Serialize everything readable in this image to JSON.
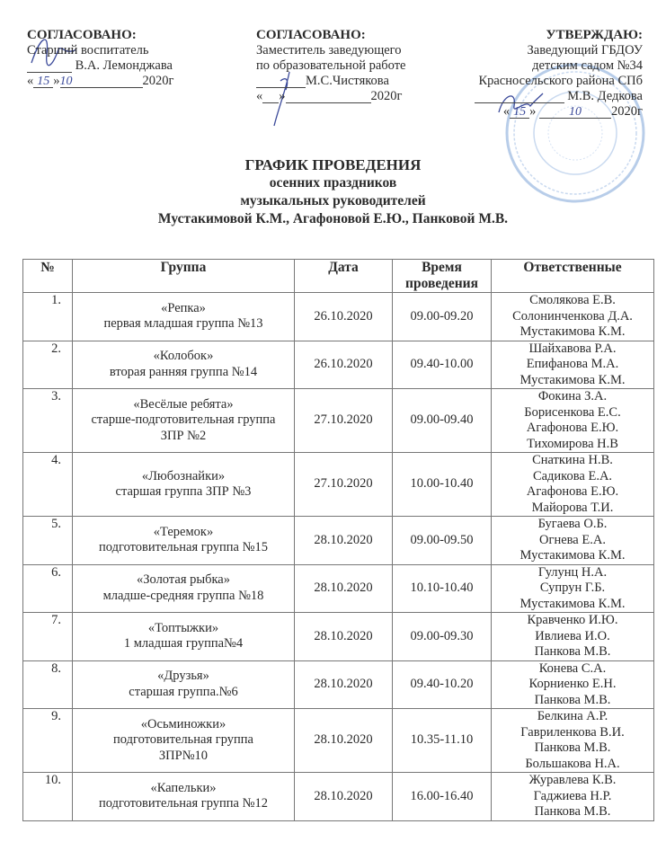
{
  "approvals": [
    {
      "heading": "СОГЛАСОВАНО:",
      "lines": [
        "Старший воспитатель"
      ],
      "name": "В.А. Лемонджава",
      "day": "15",
      "month": "10",
      "year": "2020г"
    },
    {
      "heading": "СОГЛАСОВАНО:",
      "lines": [
        "Заместитель заведующего",
        "по образовательной работе"
      ],
      "name": "М.С.Чистякова",
      "year": "2020г"
    },
    {
      "heading": "УТВЕРЖДАЮ:",
      "lines": [
        "Заведующий ГБДОУ",
        "детским садом №34",
        "Красносельского района СПб"
      ],
      "name": "М.В. Дедкова",
      "day": "15",
      "month": "10",
      "year": "2020г"
    }
  ],
  "title": {
    "line1": "ГРАФИК ПРОВЕДЕНИЯ",
    "line2": "осенних праздников",
    "line3": "музыкальных руководителей",
    "line4": "Мустакимовой К.М., Агафоновой Е.Ю., Панковой М.В."
  },
  "table": {
    "headers": [
      "№",
      "Группа",
      "Дата",
      "Время проведения",
      "Ответственные"
    ],
    "rows": [
      {
        "num": "1.",
        "group": [
          "«Репка»",
          "первая младшая группа №13"
        ],
        "date": "26.10.2020",
        "time": "09.00-09.20",
        "people": [
          "Смолякова Е.В.",
          "Солонинченкова Д.А.",
          "Мустакимова К.М."
        ]
      },
      {
        "num": "2.",
        "group": [
          "«Колобок»",
          "вторая ранняя группа №14"
        ],
        "date": "26.10.2020",
        "time": "09.40-10.00",
        "people": [
          "Шайхавова Р.А.",
          "Епифанова М.А.",
          "Мустакимова К.М."
        ]
      },
      {
        "num": "3.",
        "group": [
          "«Весёлые ребята»",
          "старше-подготовительная группа",
          "ЗПР №2"
        ],
        "date": "27.10.2020",
        "time": "09.00-09.40",
        "people": [
          "Фокина З.А.",
          "Борисенкова Е.С.",
          "Агафонова Е.Ю.",
          "Тихомирова Н.В"
        ]
      },
      {
        "num": "4.",
        "group": [
          "«Любознайки»",
          "старшая группа ЗПР №3"
        ],
        "date": "27.10.2020",
        "time": "10.00-10.40",
        "people": [
          "Снаткина Н.В.",
          "Садикова Е.А.",
          "Агафонова Е.Ю.",
          "Майорова Т.И."
        ]
      },
      {
        "num": "5.",
        "group": [
          "«Теремок»",
          "подготовительная группа №15"
        ],
        "date": "28.10.2020",
        "time": "09.00-09.50",
        "people": [
          "Бугаева О.Б.",
          "Огнева Е.А.",
          "Мустакимова К.М."
        ]
      },
      {
        "num": "6.",
        "group": [
          "«Золотая рыбка»",
          "младше-средняя группа №18"
        ],
        "date": "28.10.2020",
        "time": "10.10-10.40",
        "people": [
          "Гулунц Н.А.",
          "Супрун Г.Б.",
          "Мустакимова К.М."
        ]
      },
      {
        "num": "7.",
        "group": [
          "«Топтыжки»",
          "1 младшая  группа№4"
        ],
        "date": "28.10.2020",
        "time": "09.00-09.30",
        "people": [
          "Кравченко И.Ю.",
          "Ивлиева И.О.",
          "Панкова М.В."
        ]
      },
      {
        "num": "8.",
        "group": [
          "«Друзья»",
          "старшая группа.№6"
        ],
        "date": "28.10.2020",
        "time": "09.40-10.20",
        "people": [
          "Конева С.А.",
          "Корниенко Е.Н.",
          "Панкова М.В."
        ]
      },
      {
        "num": "9.",
        "group": [
          "«Осьминожки»",
          "подготовительная группа",
          "ЗПР№10"
        ],
        "date": "28.10.2020",
        "time": "10.35-11.10",
        "people": [
          "Белкина А.Р.",
          "Гавриленкова В.И.",
          "Панкова М.В.",
          "Большакова Н.А."
        ]
      },
      {
        "num": "10.",
        "group": [
          "«Капельки»",
          "подготовительная группа №12"
        ],
        "date": "28.10.2020",
        "time": "16.00-16.40",
        "people": [
          "Журавлева К.В.",
          "Гаджиева Н.Р.",
          "Панкова М.В."
        ]
      }
    ]
  },
  "colors": {
    "ink": "#2a2a2a",
    "stamp": "#7fa6d8",
    "pen": "#3b4a9a"
  }
}
